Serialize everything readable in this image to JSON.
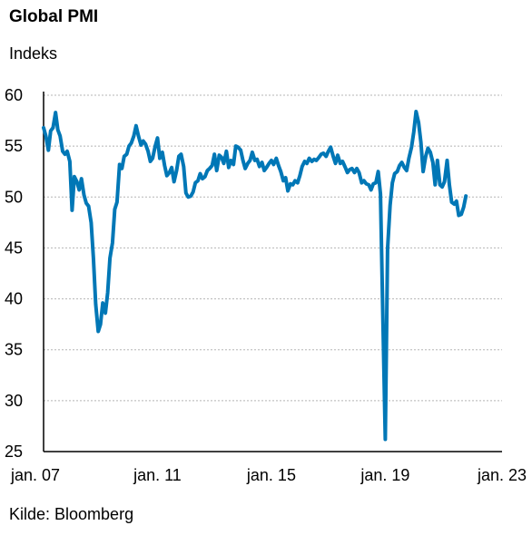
{
  "chart_data": {
    "type": "line",
    "title": "Global PMI",
    "ylabel": "Indeks",
    "source": "Kilde: Bloomberg",
    "xlim": [
      2007.0,
      2023.1
    ],
    "ylim": [
      25,
      60
    ],
    "yticks": [
      25,
      30,
      35,
      40,
      45,
      50,
      55,
      60
    ],
    "xticks": [
      {
        "value": 2007.0,
        "label": "jan. 07"
      },
      {
        "value": 2011.0,
        "label": "jan. 11"
      },
      {
        "value": 2015.0,
        "label": "jan. 15"
      },
      {
        "value": 2019.0,
        "label": "jan. 19"
      },
      {
        "value": 2023.0,
        "label": "jan. 23"
      }
    ],
    "grid": "horizontal dashed",
    "series": [
      {
        "color": "#0077b6",
        "points": [
          [
            2007.0,
            56.8
          ],
          [
            2007.08,
            56.0
          ],
          [
            2007.17,
            54.6
          ],
          [
            2007.25,
            56.5
          ],
          [
            2007.33,
            56.8
          ],
          [
            2007.42,
            58.3
          ],
          [
            2007.5,
            56.6
          ],
          [
            2007.58,
            56.0
          ],
          [
            2007.67,
            54.5
          ],
          [
            2007.75,
            54.2
          ],
          [
            2007.83,
            54.5
          ],
          [
            2007.92,
            53.5
          ],
          [
            2008.0,
            48.7
          ],
          [
            2008.08,
            52.0
          ],
          [
            2008.17,
            51.5
          ],
          [
            2008.25,
            50.7
          ],
          [
            2008.33,
            51.8
          ],
          [
            2008.42,
            50.2
          ],
          [
            2008.5,
            49.4
          ],
          [
            2008.58,
            49.1
          ],
          [
            2008.67,
            47.5
          ],
          [
            2008.75,
            44.0
          ],
          [
            2008.83,
            39.5
          ],
          [
            2008.92,
            36.8
          ],
          [
            2009.0,
            37.5
          ],
          [
            2009.08,
            39.6
          ],
          [
            2009.17,
            38.6
          ],
          [
            2009.25,
            40.6
          ],
          [
            2009.33,
            44.0
          ],
          [
            2009.42,
            45.5
          ],
          [
            2009.5,
            48.8
          ],
          [
            2009.58,
            49.5
          ],
          [
            2009.67,
            53.2
          ],
          [
            2009.75,
            52.8
          ],
          [
            2009.83,
            54.0
          ],
          [
            2009.92,
            54.2
          ],
          [
            2010.0,
            55.0
          ],
          [
            2010.08,
            55.3
          ],
          [
            2010.17,
            56.0
          ],
          [
            2010.25,
            57.0
          ],
          [
            2010.33,
            56.0
          ],
          [
            2010.42,
            55.1
          ],
          [
            2010.5,
            55.5
          ],
          [
            2010.58,
            55.2
          ],
          [
            2010.67,
            54.5
          ],
          [
            2010.75,
            53.5
          ],
          [
            2010.83,
            53.8
          ],
          [
            2010.92,
            55.0
          ],
          [
            2011.0,
            55.8
          ],
          [
            2011.08,
            53.8
          ],
          [
            2011.17,
            54.4
          ],
          [
            2011.25,
            53.1
          ],
          [
            2011.33,
            52.1
          ],
          [
            2011.42,
            52.4
          ],
          [
            2011.5,
            52.9
          ],
          [
            2011.58,
            51.5
          ],
          [
            2011.67,
            52.6
          ],
          [
            2011.75,
            54.0
          ],
          [
            2011.83,
            54.2
          ],
          [
            2011.92,
            53.0
          ],
          [
            2012.0,
            50.4
          ],
          [
            2012.08,
            50.0
          ],
          [
            2012.17,
            50.1
          ],
          [
            2012.25,
            50.5
          ],
          [
            2012.33,
            51.4
          ],
          [
            2012.42,
            51.6
          ],
          [
            2012.5,
            52.3
          ],
          [
            2012.58,
            51.8
          ],
          [
            2012.67,
            52.0
          ],
          [
            2012.75,
            52.6
          ],
          [
            2012.83,
            52.8
          ],
          [
            2012.92,
            53.1
          ],
          [
            2013.0,
            54.2
          ],
          [
            2013.08,
            52.6
          ],
          [
            2013.17,
            54.1
          ],
          [
            2013.25,
            53.9
          ],
          [
            2013.33,
            53.3
          ],
          [
            2013.42,
            54.5
          ],
          [
            2013.5,
            52.9
          ],
          [
            2013.58,
            53.6
          ],
          [
            2013.67,
            53.2
          ],
          [
            2013.75,
            55.0
          ],
          [
            2013.83,
            54.9
          ],
          [
            2013.92,
            54.6
          ],
          [
            2014.0,
            53.6
          ],
          [
            2014.08,
            52.8
          ],
          [
            2014.17,
            53.3
          ],
          [
            2014.25,
            53.6
          ],
          [
            2014.33,
            54.4
          ],
          [
            2014.42,
            53.6
          ],
          [
            2014.5,
            53.7
          ],
          [
            2014.58,
            53.0
          ],
          [
            2014.67,
            53.4
          ],
          [
            2014.75,
            52.6
          ],
          [
            2014.83,
            52.9
          ],
          [
            2014.92,
            53.3
          ],
          [
            2015.0,
            53.6
          ],
          [
            2015.08,
            53.2
          ],
          [
            2015.17,
            53.8
          ],
          [
            2015.25,
            53.1
          ],
          [
            2015.33,
            52.5
          ],
          [
            2015.42,
            51.6
          ],
          [
            2015.5,
            51.9
          ],
          [
            2015.58,
            50.6
          ],
          [
            2015.67,
            51.3
          ],
          [
            2015.75,
            51.2
          ],
          [
            2015.83,
            51.6
          ],
          [
            2015.92,
            51.4
          ],
          [
            2016.0,
            52.1
          ],
          [
            2016.08,
            53.0
          ],
          [
            2016.17,
            53.5
          ],
          [
            2016.25,
            53.3
          ],
          [
            2016.33,
            53.8
          ],
          [
            2016.42,
            53.5
          ],
          [
            2016.5,
            53.7
          ],
          [
            2016.58,
            53.6
          ],
          [
            2016.67,
            53.9
          ],
          [
            2016.75,
            54.2
          ],
          [
            2016.83,
            54.3
          ],
          [
            2016.92,
            54.0
          ],
          [
            2017.0,
            54.5
          ],
          [
            2017.08,
            54.9
          ],
          [
            2017.17,
            54.0
          ],
          [
            2017.25,
            53.3
          ],
          [
            2017.33,
            54.1
          ],
          [
            2017.42,
            53.3
          ],
          [
            2017.5,
            53.5
          ],
          [
            2017.58,
            53.0
          ],
          [
            2017.67,
            52.4
          ],
          [
            2017.75,
            52.7
          ],
          [
            2017.83,
            52.8
          ],
          [
            2017.92,
            52.4
          ],
          [
            2018.0,
            52.8
          ],
          [
            2018.08,
            52.4
          ],
          [
            2018.17,
            51.4
          ],
          [
            2018.25,
            51.6
          ],
          [
            2018.33,
            51.3
          ],
          [
            2018.42,
            51.2
          ],
          [
            2018.5,
            50.7
          ],
          [
            2018.58,
            51.3
          ],
          [
            2018.67,
            51.4
          ],
          [
            2018.75,
            52.5
          ],
          [
            2018.83,
            50.3
          ],
          [
            2018.92,
            37.4
          ],
          [
            2019.0,
            26.2
          ],
          [
            2019.08,
            44.9
          ],
          [
            2019.17,
            49.2
          ],
          [
            2019.25,
            51.4
          ],
          [
            2019.33,
            52.3
          ],
          [
            2019.42,
            52.5
          ],
          [
            2019.5,
            53.1
          ],
          [
            2019.58,
            53.4
          ],
          [
            2019.67,
            52.9
          ],
          [
            2019.75,
            52.6
          ],
          [
            2019.83,
            53.8
          ],
          [
            2019.92,
            54.9
          ],
          [
            2020.0,
            56.4
          ],
          [
            2020.08,
            58.4
          ],
          [
            2020.17,
            57.3
          ],
          [
            2020.25,
            55.4
          ],
          [
            2020.33,
            52.5
          ],
          [
            2020.42,
            54.0
          ],
          [
            2020.5,
            54.8
          ],
          [
            2020.58,
            54.4
          ],
          [
            2020.67,
            53.4
          ],
          [
            2020.75,
            51.2
          ],
          [
            2020.83,
            53.6
          ],
          [
            2020.92,
            51.2
          ],
          [
            2021.0,
            51.0
          ],
          [
            2021.08,
            51.5
          ],
          [
            2021.17,
            53.6
          ],
          [
            2021.25,
            51.2
          ],
          [
            2021.33,
            49.5
          ],
          [
            2021.42,
            49.3
          ],
          [
            2021.5,
            49.6
          ],
          [
            2021.58,
            48.2
          ],
          [
            2021.67,
            48.3
          ],
          [
            2021.75,
            49.0
          ],
          [
            2021.83,
            50.1
          ]
        ]
      }
    ]
  }
}
